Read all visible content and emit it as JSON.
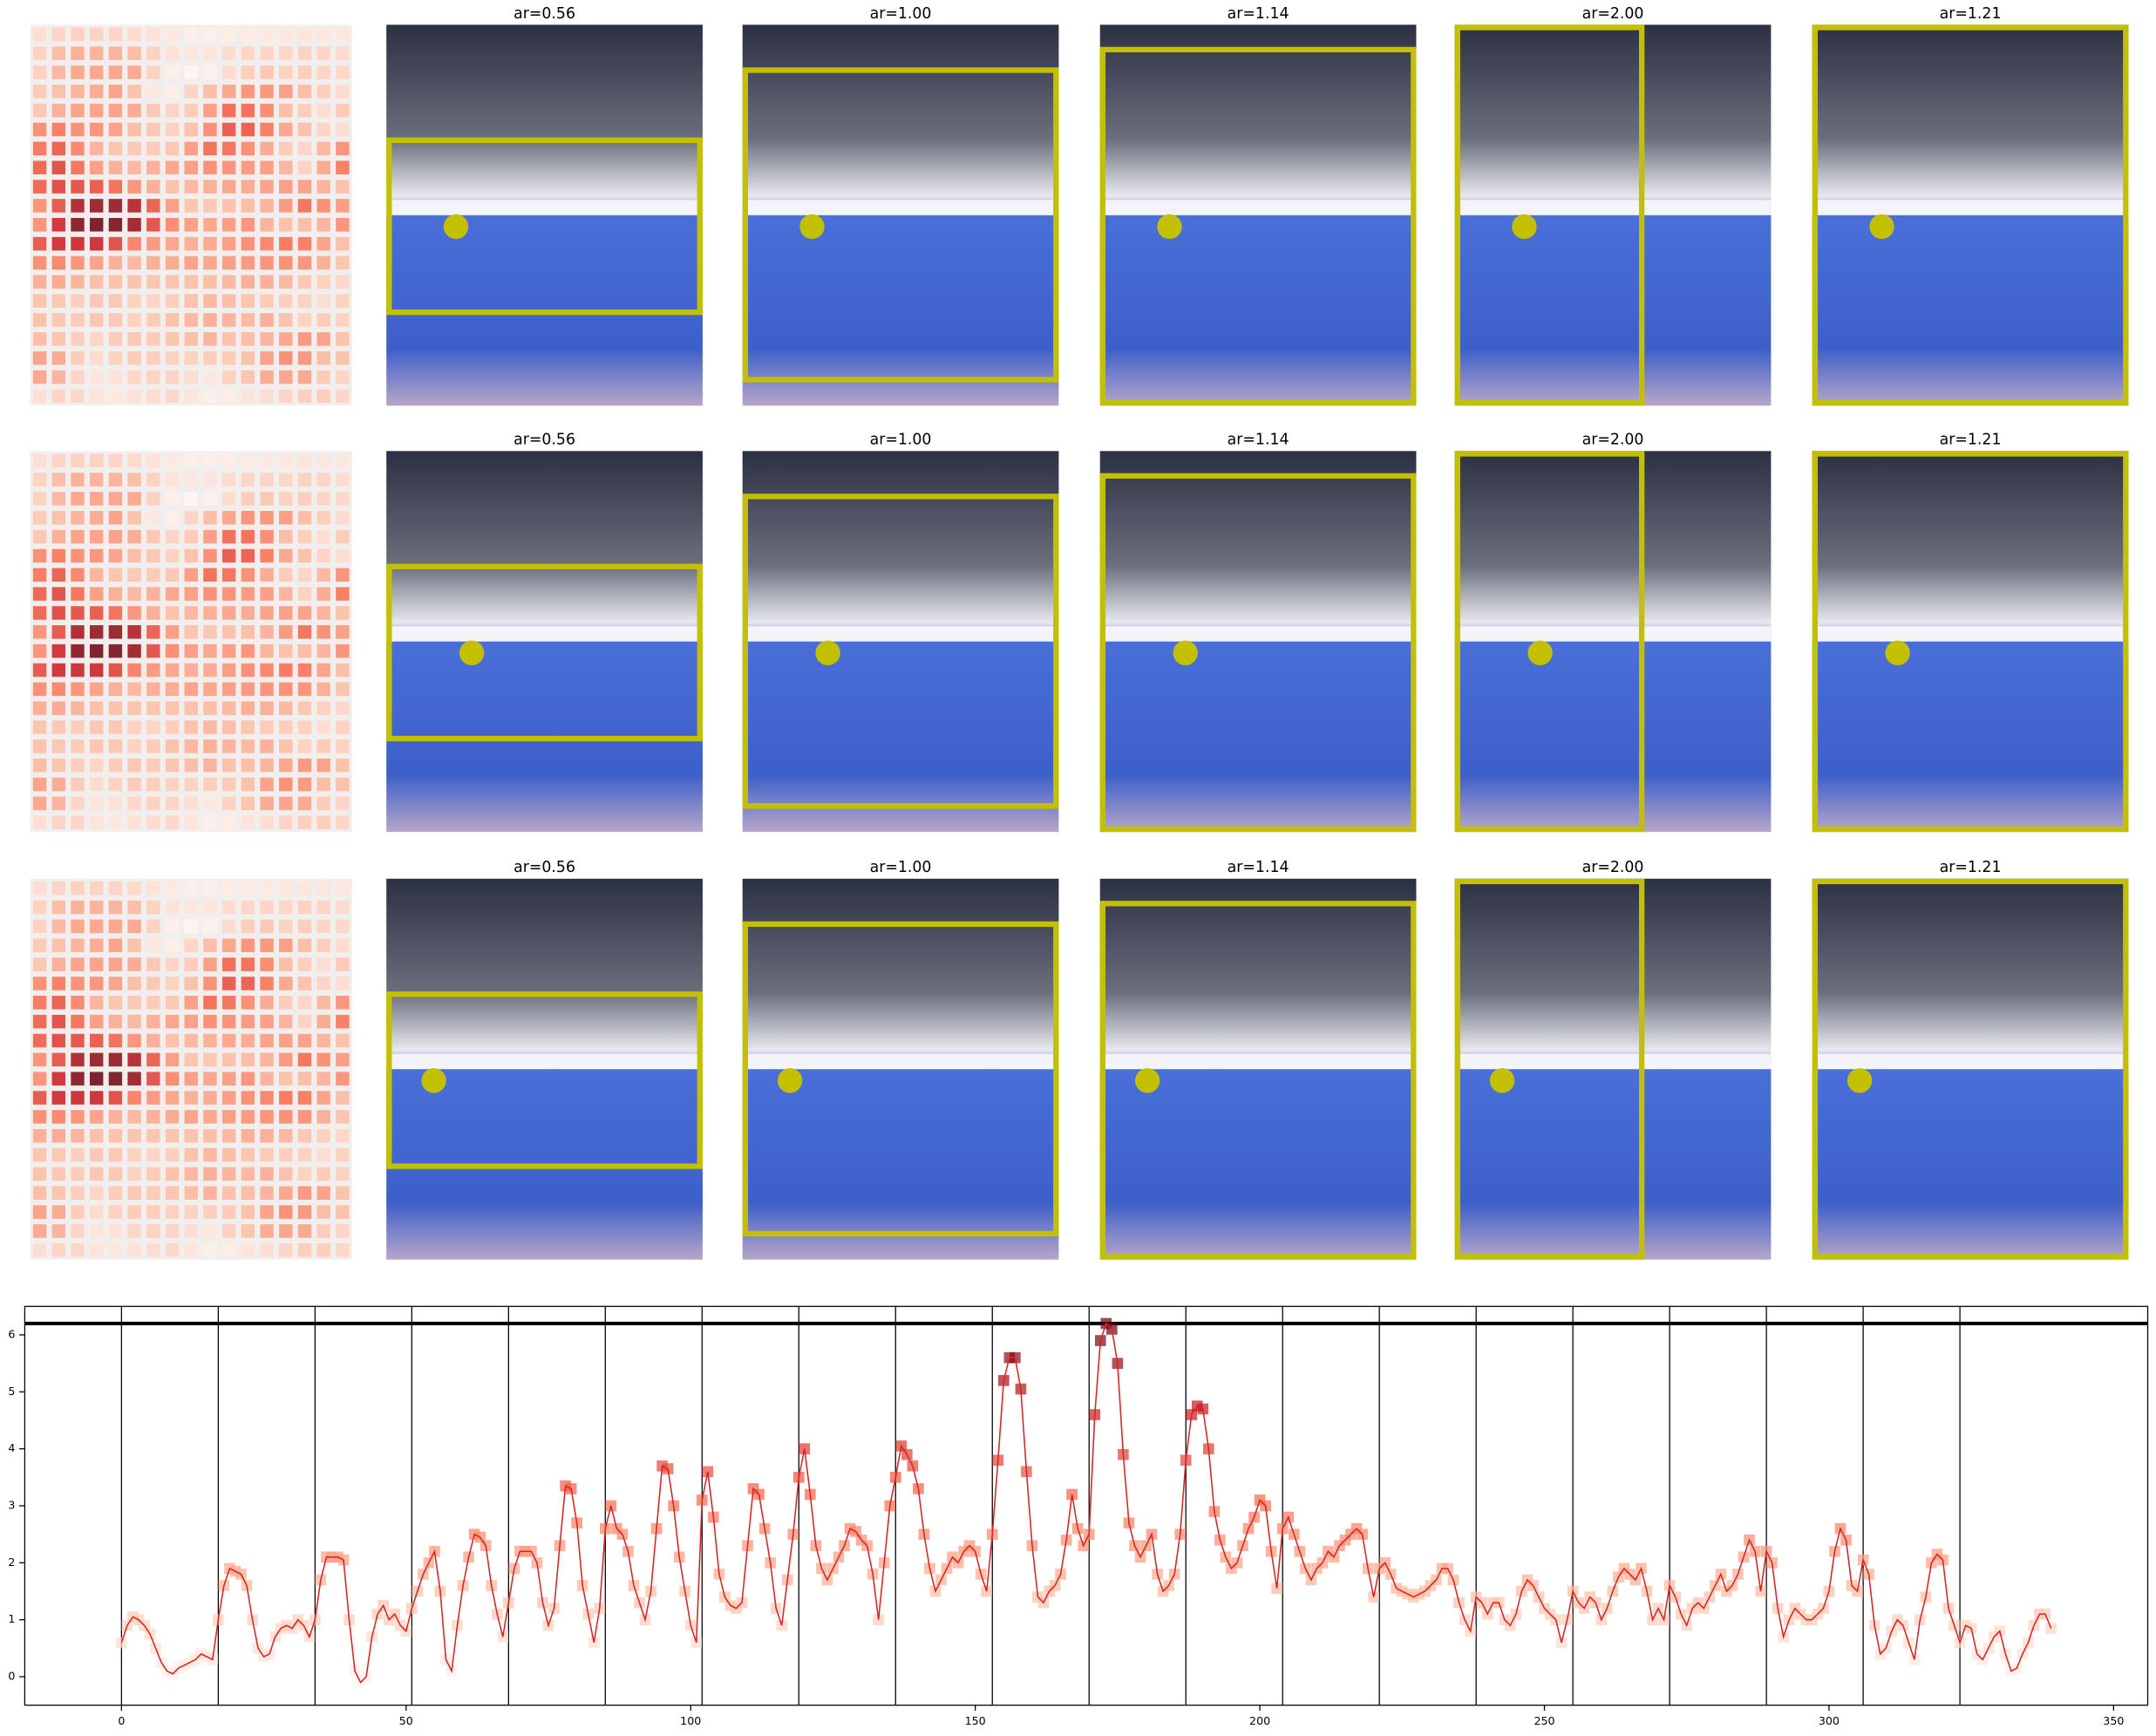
{
  "panels": [
    {
      "titles": [
        "ar=0.56",
        "ar=1.00",
        "ar=1.14",
        "ar=2.00",
        "ar=1.21"
      ]
    },
    {
      "titles": [
        "ar=0.56",
        "ar=1.00",
        "ar=1.14",
        "ar=2.00",
        "ar=1.21"
      ]
    },
    {
      "titles": [
        "ar=0.56",
        "ar=1.00",
        "ar=1.14",
        "ar=2.00",
        "ar=1.21"
      ]
    }
  ],
  "chart_data": {
    "type": "line",
    "color": "#d62728",
    "x": [
      0,
      1,
      2,
      3,
      4,
      5,
      6,
      7,
      8,
      9,
      10,
      11,
      12,
      13,
      14,
      15,
      16,
      17,
      18,
      19,
      20,
      21,
      22,
      23,
      24,
      25,
      26,
      27,
      28,
      29,
      30,
      31,
      32,
      33,
      34,
      35,
      36,
      37,
      38,
      39,
      40,
      41,
      42,
      43,
      44,
      45,
      46,
      47,
      48,
      49,
      50,
      51,
      52,
      53,
      54,
      55,
      56,
      57,
      58,
      59,
      60,
      61,
      62,
      63,
      64,
      65,
      66,
      67,
      68,
      69,
      70,
      71,
      72,
      73,
      74,
      75,
      76,
      77,
      78,
      79,
      80,
      81,
      82,
      83,
      84,
      85,
      86,
      87,
      88,
      89,
      90,
      91,
      92,
      93,
      94,
      95,
      96,
      97,
      98,
      99,
      100,
      101,
      102,
      103,
      104,
      105,
      106,
      107,
      108,
      109,
      110,
      111,
      112,
      113,
      114,
      115,
      116,
      117,
      118,
      119,
      120,
      121,
      122,
      123,
      124,
      125,
      126,
      127,
      128,
      129,
      130,
      131,
      132,
      133,
      134,
      135,
      136,
      137,
      138,
      139,
      140,
      141,
      142,
      143,
      144,
      145,
      146,
      147,
      148,
      149,
      150,
      151,
      152,
      153,
      154,
      155,
      156,
      157,
      158,
      159,
      160,
      161,
      162,
      163,
      164,
      165,
      166,
      167,
      168,
      169,
      170,
      171,
      172,
      173,
      174,
      175,
      176,
      177,
      178,
      179,
      180,
      181,
      182,
      183,
      184,
      185,
      186,
      187,
      188,
      189,
      190,
      191,
      192,
      193,
      194,
      195,
      196,
      197,
      198,
      199,
      200,
      201,
      202,
      203,
      204,
      205,
      206,
      207,
      208,
      209,
      210,
      211,
      212,
      213,
      214,
      215,
      216,
      217,
      218,
      219,
      220,
      221,
      222,
      223,
      224,
      225,
      226,
      227,
      228,
      229,
      230,
      231,
      232,
      233,
      234,
      235,
      236,
      237,
      238,
      239,
      240,
      241,
      242,
      243,
      244,
      245,
      246,
      247,
      248,
      249,
      250,
      251,
      252,
      253,
      254,
      255,
      256,
      257,
      258,
      259,
      260,
      261,
      262,
      263,
      264,
      265,
      266,
      267,
      268,
      269,
      270,
      271,
      272,
      273,
      274,
      275,
      276,
      277,
      278,
      279,
      280,
      281,
      282,
      283,
      284,
      285,
      286,
      287,
      288,
      289,
      290,
      291,
      292,
      293,
      294,
      295,
      296,
      297,
      298,
      299,
      300,
      301,
      302,
      303,
      304,
      305,
      306,
      307,
      308,
      309,
      310,
      311,
      312,
      313,
      314,
      315,
      316,
      317,
      318,
      319,
      320,
      321,
      322,
      323,
      324,
      325,
      326,
      327,
      328,
      329,
      330,
      331,
      332,
      333,
      334,
      335,
      336,
      337,
      338,
      339
    ],
    "values": [
      0.6,
      0.9,
      1.05,
      1.0,
      0.9,
      0.75,
      0.5,
      0.25,
      0.1,
      0.05,
      0.15,
      0.2,
      0.25,
      0.3,
      0.4,
      0.35,
      0.3,
      1.0,
      1.6,
      1.9,
      1.85,
      1.8,
      1.6,
      1.0,
      0.5,
      0.35,
      0.4,
      0.7,
      0.85,
      0.9,
      0.85,
      1.0,
      0.9,
      0.7,
      1.0,
      1.7,
      2.1,
      2.1,
      2.1,
      2.05,
      1.0,
      0.1,
      -0.1,
      0.0,
      0.7,
      1.1,
      1.25,
      1.0,
      1.1,
      0.9,
      0.8,
      1.2,
      1.5,
      1.8,
      2.0,
      2.2,
      1.5,
      0.3,
      0.1,
      0.9,
      1.6,
      2.1,
      2.5,
      2.45,
      2.3,
      1.6,
      1.1,
      0.7,
      1.3,
      1.9,
      2.2,
      2.2,
      2.2,
      2.0,
      1.3,
      0.9,
      1.2,
      2.3,
      3.35,
      3.3,
      2.7,
      1.6,
      1.1,
      0.6,
      1.2,
      2.6,
      3.0,
      2.6,
      2.5,
      2.2,
      1.6,
      1.3,
      1.0,
      1.5,
      2.6,
      3.7,
      3.65,
      3.0,
      2.1,
      1.5,
      0.9,
      0.6,
      3.1,
      3.6,
      2.8,
      1.8,
      1.4,
      1.25,
      1.2,
      1.3,
      2.3,
      3.3,
      3.2,
      2.6,
      2.0,
      1.2,
      0.9,
      1.7,
      2.5,
      3.5,
      4.0,
      3.2,
      2.3,
      1.9,
      1.7,
      1.9,
      2.1,
      2.3,
      2.6,
      2.55,
      2.4,
      2.3,
      1.8,
      1.0,
      2.0,
      3.0,
      3.5,
      4.05,
      3.9,
      3.7,
      3.3,
      2.5,
      1.9,
      1.5,
      1.7,
      1.9,
      2.1,
      2.0,
      2.2,
      2.3,
      2.2,
      1.8,
      1.5,
      2.5,
      3.8,
      5.2,
      5.6,
      5.6,
      5.05,
      3.6,
      2.3,
      1.4,
      1.3,
      1.5,
      1.6,
      1.8,
      2.4,
      3.2,
      2.6,
      2.3,
      2.5,
      4.6,
      5.9,
      6.2,
      6.1,
      5.5,
      3.9,
      2.7,
      2.3,
      2.1,
      2.3,
      2.5,
      1.8,
      1.5,
      1.6,
      1.8,
      2.5,
      3.8,
      4.6,
      4.75,
      4.7,
      4.0,
      2.9,
      2.4,
      2.1,
      1.9,
      2.0,
      2.3,
      2.6,
      2.8,
      3.1,
      3.0,
      2.2,
      1.55,
      2.6,
      2.8,
      2.5,
      2.2,
      1.9,
      1.7,
      1.9,
      2.0,
      2.2,
      2.1,
      2.3,
      2.4,
      2.5,
      2.6,
      2.5,
      1.9,
      1.4,
      1.9,
      2.0,
      1.8,
      1.55,
      1.5,
      1.45,
      1.4,
      1.45,
      1.5,
      1.6,
      1.7,
      1.9,
      1.9,
      1.7,
      1.3,
      1.0,
      0.8,
      1.4,
      1.3,
      1.1,
      1.3,
      1.3,
      1.0,
      0.9,
      1.1,
      1.5,
      1.7,
      1.6,
      1.4,
      1.2,
      1.1,
      1.0,
      0.6,
      1.0,
      1.5,
      1.3,
      1.2,
      1.4,
      1.3,
      1.0,
      1.2,
      1.5,
      1.75,
      1.9,
      1.8,
      1.7,
      1.9,
      1.5,
      1.0,
      1.2,
      1.0,
      1.6,
      1.4,
      1.1,
      0.9,
      1.2,
      1.3,
      1.2,
      1.4,
      1.6,
      1.8,
      1.5,
      1.6,
      1.8,
      2.1,
      2.4,
      2.2,
      1.5,
      2.2,
      2.0,
      1.2,
      0.7,
      1.0,
      1.2,
      1.1,
      1.0,
      1.0,
      1.1,
      1.2,
      1.5,
      2.2,
      2.6,
      2.4,
      1.6,
      1.5,
      2.05,
      1.8,
      0.9,
      0.4,
      0.5,
      0.8,
      1.0,
      0.9,
      0.6,
      0.3,
      1.0,
      1.4,
      2.0,
      2.15,
      2.05,
      1.2,
      0.9,
      0.6,
      0.9,
      0.85,
      0.4,
      0.3,
      0.5,
      0.7,
      0.8,
      0.4,
      0.1,
      0.15,
      0.4,
      0.6,
      0.9,
      1.1,
      1.1,
      0.85
    ],
    "hline": 6.2,
    "vlines": [
      0,
      17,
      34,
      51,
      68,
      85,
      102,
      119,
      136,
      153,
      170,
      187,
      204,
      221,
      238,
      255,
      272,
      289,
      306,
      323
    ],
    "xlim": [
      -17,
      356
    ],
    "ylim": [
      -0.5,
      6.5
    ],
    "xticks": [
      0,
      50,
      100,
      150,
      200,
      250,
      300,
      350
    ],
    "yticks": [
      0,
      1,
      2,
      3,
      4,
      5,
      6
    ]
  }
}
